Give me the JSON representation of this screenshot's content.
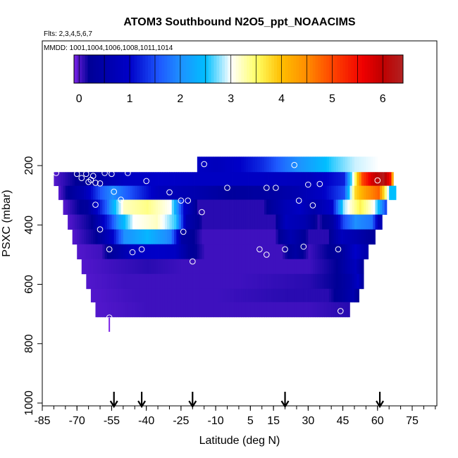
{
  "chart_data": {
    "type": "heatmap",
    "title": "ATOM3 Southbound N2O5_ppt_NOAACIMS",
    "subtitle_flights": "Flts: 2,3,4,5,6,7",
    "subtitle_dates": "MMDD: 1001,1004,1006,1008,1011,1014",
    "xlabel": "Latitude (deg N)",
    "ylabel": "PSXC (mbar)",
    "xlim": [
      -85,
      85
    ],
    "ylim": [
      1015,
      50
    ],
    "x_ticks": [
      -85,
      -70,
      -55,
      -40,
      -25,
      -10,
      5,
      15,
      30,
      45,
      60,
      75
    ],
    "x_tick_labels": [
      "-85",
      "-70",
      "-55",
      "-40",
      "-25",
      "-10",
      "5",
      "15",
      "30",
      "45",
      "60",
      "75"
    ],
    "y_ticks": [
      200,
      400,
      600,
      800,
      1000
    ],
    "y_tick_labels": [
      "200",
      "400",
      "600",
      "800",
      "1000"
    ],
    "colorbar": {
      "ticks": [
        0,
        1,
        2,
        3,
        4,
        5,
        6
      ],
      "tick_labels": [
        "0",
        "1",
        "2",
        "3",
        "4",
        "5",
        "6"
      ],
      "range": [
        -0.1,
        6.4
      ],
      "colors": [
        "#7b22e6",
        "#0000a6",
        "#0000ff",
        "#1e90ff",
        "#00bfff",
        "#ffffff",
        "#ffff66",
        "#ffa500",
        "#ff4500",
        "#ff0000",
        "#b22222"
      ]
    },
    "flight_arrows_lat": [
      -54,
      -42,
      -20,
      20,
      61
    ],
    "cells_by_level": [
      {
        "p0": 170,
        "p1": 222,
        "x0": -18,
        "segments": [
          [
            -18,
            0.9
          ],
          [
            -10,
            0.8
          ],
          [
            0,
            1.0
          ],
          [
            10,
            1.3
          ],
          [
            20,
            1.8
          ],
          [
            30,
            2.2
          ],
          [
            40,
            2.6
          ],
          [
            50,
            2.9
          ],
          [
            60,
            3.0
          ],
          [
            70,
            3.0
          ]
        ]
      },
      {
        "p0": 222,
        "p1": 268,
        "x0": -80,
        "segments": [
          [
            -80,
            0.0
          ],
          [
            -62,
            0.4
          ],
          [
            -50,
            0.9
          ],
          [
            -35,
            1.0
          ],
          [
            -18,
            0.9
          ],
          [
            10,
            0.9
          ],
          [
            30,
            0.8
          ],
          [
            45,
            1.2
          ],
          [
            50,
            3.5
          ],
          [
            53,
            5.0
          ],
          [
            57,
            5.8
          ],
          [
            62,
            6.3
          ],
          [
            65,
            5.5
          ],
          [
            67,
            3.0
          ]
        ]
      },
      {
        "p0": 268,
        "p1": 315,
        "x0": -78,
        "segments": [
          [
            -78,
            0.0
          ],
          [
            -68,
            0.6
          ],
          [
            -60,
            1.6
          ],
          [
            -55,
            2.0
          ],
          [
            -45,
            1.4
          ],
          [
            -35,
            0.8
          ],
          [
            -20,
            0.6
          ],
          [
            -5,
            0.3
          ],
          [
            15,
            0.4
          ],
          [
            25,
            0.6
          ],
          [
            35,
            0.9
          ],
          [
            45,
            1.5
          ],
          [
            50,
            3.8
          ],
          [
            55,
            4.4
          ],
          [
            60,
            4.8
          ],
          [
            65,
            2.5
          ]
        ]
      },
      {
        "p0": 315,
        "p1": 365,
        "x0": -76,
        "segments": [
          [
            -76,
            0.0
          ],
          [
            -66,
            0.3
          ],
          [
            -58,
            1.6
          ],
          [
            -54,
            2.5
          ],
          [
            -50,
            3.2
          ],
          [
            -40,
            3.4
          ],
          [
            -30,
            3.0
          ],
          [
            -24,
            1.0
          ],
          [
            -18,
            0.1
          ],
          [
            10,
            0.1
          ],
          [
            20,
            0.7
          ],
          [
            26,
            0.9
          ],
          [
            32,
            0.5
          ],
          [
            40,
            1.0
          ],
          [
            45,
            2.8
          ],
          [
            52,
            3.6
          ],
          [
            58,
            3.0
          ],
          [
            63,
            1.5
          ]
        ]
      },
      {
        "p0": 365,
        "p1": 415,
        "x0": -74,
        "segments": [
          [
            -74,
            0.0
          ],
          [
            -64,
            0.2
          ],
          [
            -56,
            1.4
          ],
          [
            -52,
            2.2
          ],
          [
            -46,
            3.0
          ],
          [
            -36,
            3.2
          ],
          [
            -28,
            2.6
          ],
          [
            -23,
            0.6
          ],
          [
            -16,
            0.1
          ],
          [
            15,
            0.1
          ],
          [
            20,
            0.8
          ],
          [
            28,
            0.6
          ],
          [
            34,
            0.1
          ],
          [
            40,
            0.4
          ],
          [
            45,
            1.5
          ],
          [
            50,
            2.0
          ],
          [
            57,
            1.8
          ],
          [
            60,
            0.7
          ]
        ]
      },
      {
        "p0": 415,
        "p1": 465,
        "x0": -72,
        "segments": [
          [
            -72,
            0.0
          ],
          [
            -62,
            0.2
          ],
          [
            -55,
            1.0
          ],
          [
            -50,
            2.0
          ],
          [
            -40,
            2.4
          ],
          [
            -30,
            1.9
          ],
          [
            -25,
            0.4
          ],
          [
            -16,
            0.05
          ],
          [
            15,
            0.05
          ],
          [
            22,
            0.6
          ],
          [
            30,
            0.1
          ],
          [
            38,
            0.1
          ],
          [
            44,
            0.8
          ],
          [
            50,
            0.6
          ],
          [
            56,
            0.3
          ]
        ]
      },
      {
        "p0": 465,
        "p1": 515,
        "x0": -70,
        "segments": [
          [
            -70,
            0.0
          ],
          [
            -60,
            0.05
          ],
          [
            -52,
            0.5
          ],
          [
            -46,
            0.9
          ],
          [
            -36,
            1.0
          ],
          [
            -28,
            0.9
          ],
          [
            -22,
            0.3
          ],
          [
            -15,
            0.05
          ],
          [
            18,
            0.05
          ],
          [
            24,
            0.4
          ],
          [
            30,
            0.05
          ],
          [
            44,
            0.3
          ],
          [
            50,
            1.0
          ],
          [
            54,
            0.6
          ]
        ]
      },
      {
        "p0": 515,
        "p1": 565,
        "x0": -68,
        "segments": [
          [
            -68,
            0.0
          ],
          [
            -55,
            0.05
          ],
          [
            -40,
            0.1
          ],
          [
            -25,
            0.05
          ],
          [
            0,
            0.05
          ],
          [
            30,
            0.05
          ],
          [
            42,
            0.2
          ],
          [
            47,
            0.6
          ],
          [
            50,
            0.8
          ],
          [
            53,
            0.3
          ]
        ]
      },
      {
        "p0": 565,
        "p1": 615,
        "x0": -66,
        "segments": [
          [
            -66,
            0.0
          ],
          [
            -50,
            0.05
          ],
          [
            -30,
            0.05
          ],
          [
            0,
            0.05
          ],
          [
            30,
            0.1
          ],
          [
            42,
            0.2
          ],
          [
            48,
            0.5
          ],
          [
            51,
            0.9
          ],
          [
            53,
            0.4
          ]
        ]
      },
      {
        "p0": 615,
        "p1": 660,
        "x0": -64,
        "segments": [
          [
            -64,
            0.0
          ],
          [
            -45,
            0.05
          ],
          [
            -10,
            0.05
          ],
          [
            20,
            0.1
          ],
          [
            38,
            0.1
          ],
          [
            44,
            0.3
          ],
          [
            49,
            0.6
          ],
          [
            51,
            0.2
          ]
        ]
      },
      {
        "p0": 660,
        "p1": 710,
        "x0": -62,
        "segments": [
          [
            -62,
            0.0
          ],
          [
            -40,
            0.05
          ],
          [
            0,
            0.05
          ],
          [
            30,
            0.05
          ],
          [
            46,
            0.1
          ],
          [
            48,
            0.1
          ]
        ]
      }
    ],
    "x1_by_level": [
      70,
      69,
      68,
      64,
      62,
      59,
      56,
      54,
      54,
      52,
      48
    ],
    "points": [
      {
        "lat": -79,
        "p": 225
      },
      {
        "lat": -70,
        "p": 228
      },
      {
        "lat": -68,
        "p": 242
      },
      {
        "lat": -66,
        "p": 228
      },
      {
        "lat": -64,
        "p": 248
      },
      {
        "lat": -62,
        "p": 258
      },
      {
        "lat": -58,
        "p": 225
      },
      {
        "lat": -55,
        "p": 228
      },
      {
        "lat": -48,
        "p": 225
      },
      {
        "lat": -63,
        "p": 235
      },
      {
        "lat": -65,
        "p": 255
      },
      {
        "lat": -60,
        "p": 260
      },
      {
        "lat": -40,
        "p": 252
      },
      {
        "lat": -54,
        "p": 288
      },
      {
        "lat": -30,
        "p": 290
      },
      {
        "lat": -15,
        "p": 195
      },
      {
        "lat": -5,
        "p": 275
      },
      {
        "lat": 12,
        "p": 275
      },
      {
        "lat": 16,
        "p": 275
      },
      {
        "lat": 24,
        "p": 198
      },
      {
        "lat": 30,
        "p": 264
      },
      {
        "lat": 35,
        "p": 262
      },
      {
        "lat": 60,
        "p": 250
      },
      {
        "lat": 70,
        "p": 198
      },
      {
        "lat": -62,
        "p": 332
      },
      {
        "lat": -51,
        "p": 315
      },
      {
        "lat": -25,
        "p": 318
      },
      {
        "lat": -22,
        "p": 318
      },
      {
        "lat": -16,
        "p": 357
      },
      {
        "lat": 26,
        "p": 318
      },
      {
        "lat": 32,
        "p": 334
      },
      {
        "lat": -60,
        "p": 415
      },
      {
        "lat": -24,
        "p": 423
      },
      {
        "lat": -56,
        "p": 482
      },
      {
        "lat": -46,
        "p": 492
      },
      {
        "lat": -42,
        "p": 482
      },
      {
        "lat": -20,
        "p": 523
      },
      {
        "lat": 9,
        "p": 482
      },
      {
        "lat": 12,
        "p": 500
      },
      {
        "lat": 20,
        "p": 482
      },
      {
        "lat": 28,
        "p": 473
      },
      {
        "lat": 43,
        "p": 482
      },
      {
        "lat": 44,
        "p": 690
      },
      {
        "lat": -56,
        "p": 712
      }
    ],
    "vertical_trace": {
      "lat": -56,
      "p0": 712,
      "p1": 760
    }
  }
}
